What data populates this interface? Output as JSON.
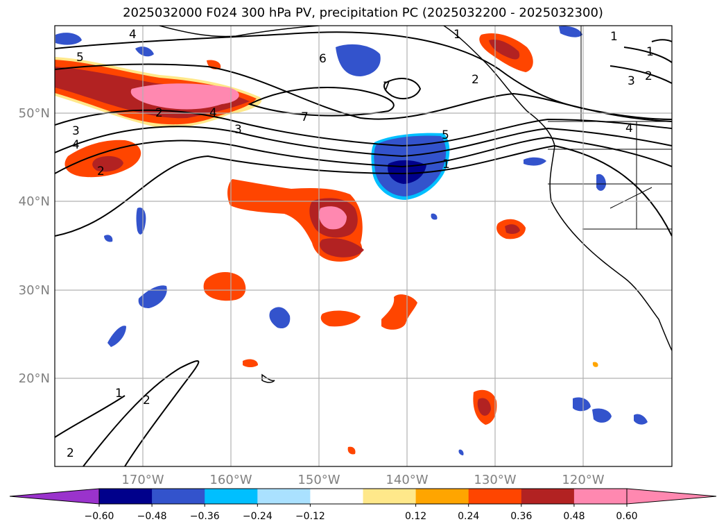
{
  "title": "2025032000 F024 300 hPa PV, precipitation PC (2025032200 - 2025032300)",
  "map": {
    "lon_labels": [
      "170°W",
      "160°W",
      "150°W",
      "140°W",
      "130°W",
      "120°W"
    ],
    "lat_labels": [
      "50°N",
      "40°N",
      "30°N",
      "20°N"
    ],
    "contour_labels": [
      "4",
      "5",
      "6",
      "7",
      "1",
      "1",
      "2",
      "3",
      "2",
      "3",
      "4",
      "7",
      "5",
      "1",
      "4",
      "1",
      "2",
      "3",
      "4",
      "2",
      "1",
      "2",
      "2"
    ]
  },
  "colorbar": {
    "ticks": [
      "−0.60",
      "−0.48",
      "−0.36",
      "−0.24",
      "−0.12",
      "0.12",
      "0.24",
      "0.36",
      "0.48",
      "0.60"
    ],
    "colors": {
      "under": "#9a33cc",
      "bins": [
        "#00008b",
        "#3353cc",
        "#00bfff",
        "#aae1ff",
        "#ffffff",
        "#ffe88a",
        "#ffa500",
        "#ff4500",
        "#b22222",
        "#ff88b0"
      ],
      "over": "#ff88b0"
    }
  }
}
